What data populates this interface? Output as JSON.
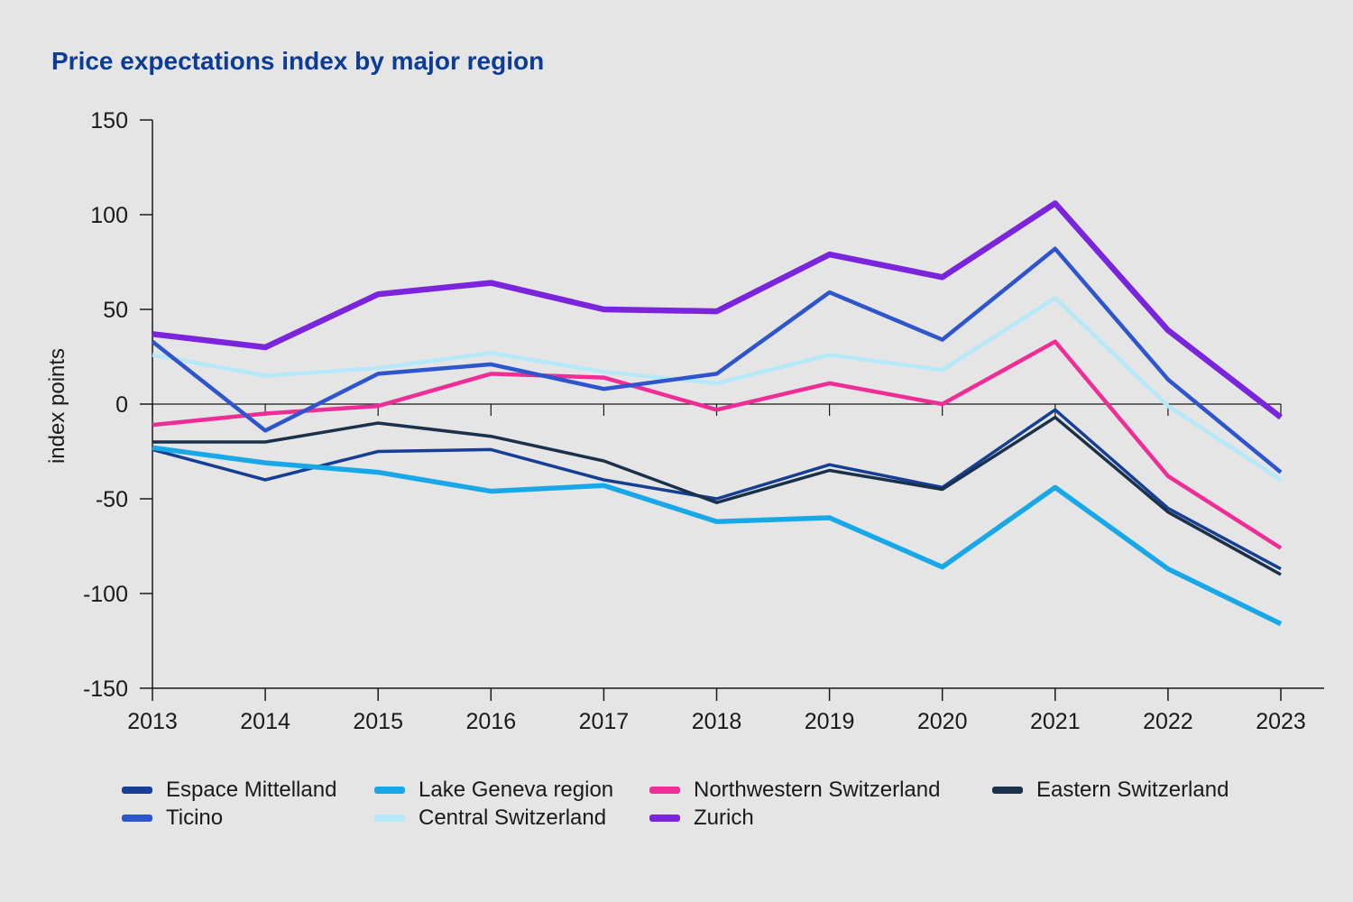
{
  "page": {
    "background": "#e5e5e5"
  },
  "title": "Price expectations index by major region",
  "title_color": "#0c3c96",
  "chart_data": {
    "type": "line",
    "title": "Price expectations index by major region",
    "ylabel": "index points",
    "xlabel": "",
    "x_labels": [
      "2013",
      "2014",
      "2015",
      "2016",
      "2017",
      "2018",
      "2019",
      "2020",
      "2021",
      "2022",
      "2023"
    ],
    "yticks": [
      150,
      100,
      50,
      0,
      -50,
      -100,
      -150
    ],
    "ylim": [
      -150,
      150
    ],
    "grid": false,
    "zero_line": true,
    "legend_position": "bottom",
    "axis_color": "#1a1a1a",
    "text_color": "#1a1a1a",
    "series": [
      {
        "name": "Espace Mittelland",
        "color": "#163f94",
        "stroke_width": 3.5,
        "values": [
          -24,
          -40,
          -25,
          -24,
          -40,
          -50,
          -32,
          -44,
          -3,
          -55,
          -87
        ]
      },
      {
        "name": "Lake Geneva region",
        "color": "#18a8e8",
        "stroke_width": 5.5,
        "values": [
          -23,
          -31,
          -36,
          -46,
          -43,
          -62,
          -60,
          -86,
          -44,
          -87,
          -116
        ]
      },
      {
        "name": "Northwestern Switzerland",
        "color": "#ee2d96",
        "stroke_width": 4.5,
        "values": [
          -11,
          -5,
          -1,
          16,
          14,
          -3,
          11,
          0,
          33,
          -38,
          -76
        ]
      },
      {
        "name": "Eastern Switzerland",
        "color": "#1b3049",
        "stroke_width": 3.5,
        "values": [
          -20,
          -20,
          -10,
          -17,
          -30,
          -52,
          -35,
          -45,
          -7,
          -57,
          -90
        ]
      },
      {
        "name": "Ticino",
        "color": "#2e55cb",
        "stroke_width": 4.5,
        "values": [
          33,
          -14,
          16,
          21,
          8,
          16,
          59,
          34,
          82,
          13,
          -36
        ]
      },
      {
        "name": "Central Switzerland",
        "color": "#b5e8f8",
        "stroke_width": 4.5,
        "values": [
          26,
          15,
          19,
          27,
          17,
          11,
          26,
          18,
          56,
          -1,
          -40
        ]
      },
      {
        "name": "Zurich",
        "color": "#7a24dc",
        "stroke_width": 6.5,
        "values": [
          37,
          30,
          58,
          64,
          50,
          49,
          79,
          67,
          106,
          39,
          -7
        ]
      }
    ],
    "draw_order": [
      "Central Switzerland",
      "Espace Mittelland",
      "Eastern Switzerland",
      "Northwestern Switzerland",
      "Ticino",
      "Lake Geneva region",
      "Zurich"
    ],
    "legend_rows": [
      [
        "Espace Mittelland",
        "Lake Geneva region",
        "Northwestern Switzerland",
        "Eastern Switzerland"
      ],
      [
        "Ticino",
        "Central Switzerland",
        "Zurich"
      ]
    ]
  }
}
